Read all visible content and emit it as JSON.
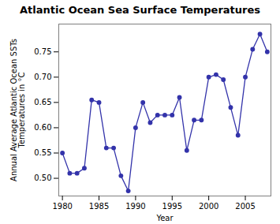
{
  "chart_data": {
    "type": "line",
    "title": "Atlantic Ocean Sea Surface Temperatures",
    "xlabel": "Year",
    "ylabel": "Annual Average Atlantic Ocean SSTs\nTemperatures in °C",
    "x": [
      1980,
      1981,
      1982,
      1983,
      1984,
      1985,
      1986,
      1987,
      1988,
      1989,
      1990,
      1991,
      1992,
      1993,
      1994,
      1995,
      1996,
      1997,
      1998,
      1999,
      2000,
      2001,
      2002,
      2003,
      2004,
      2005,
      2006,
      2007,
      2008
    ],
    "values": [
      0.55,
      0.51,
      0.51,
      0.52,
      0.655,
      0.65,
      0.56,
      0.56,
      0.505,
      0.475,
      0.6,
      0.65,
      0.61,
      0.625,
      0.625,
      0.625,
      0.66,
      0.555,
      0.615,
      0.615,
      0.7,
      0.705,
      0.695,
      0.64,
      0.585,
      0.7,
      0.755,
      0.785,
      0.75
    ],
    "color": "#3333aa",
    "marker": "circle",
    "xlim": [
      1979.5,
      2008.5
    ],
    "ylim": [
      0.465,
      0.805
    ],
    "xticks": [
      1980,
      1985,
      1990,
      1995,
      2000,
      2005
    ],
    "yticks": [
      {
        "value": 0.5,
        "label": "0.50"
      },
      0.55,
      {
        "value": 0.6,
        "label": "0.60"
      },
      0.65,
      {
        "value": 0.7,
        "label": "0.70"
      },
      0.75
    ],
    "grid": false
  }
}
